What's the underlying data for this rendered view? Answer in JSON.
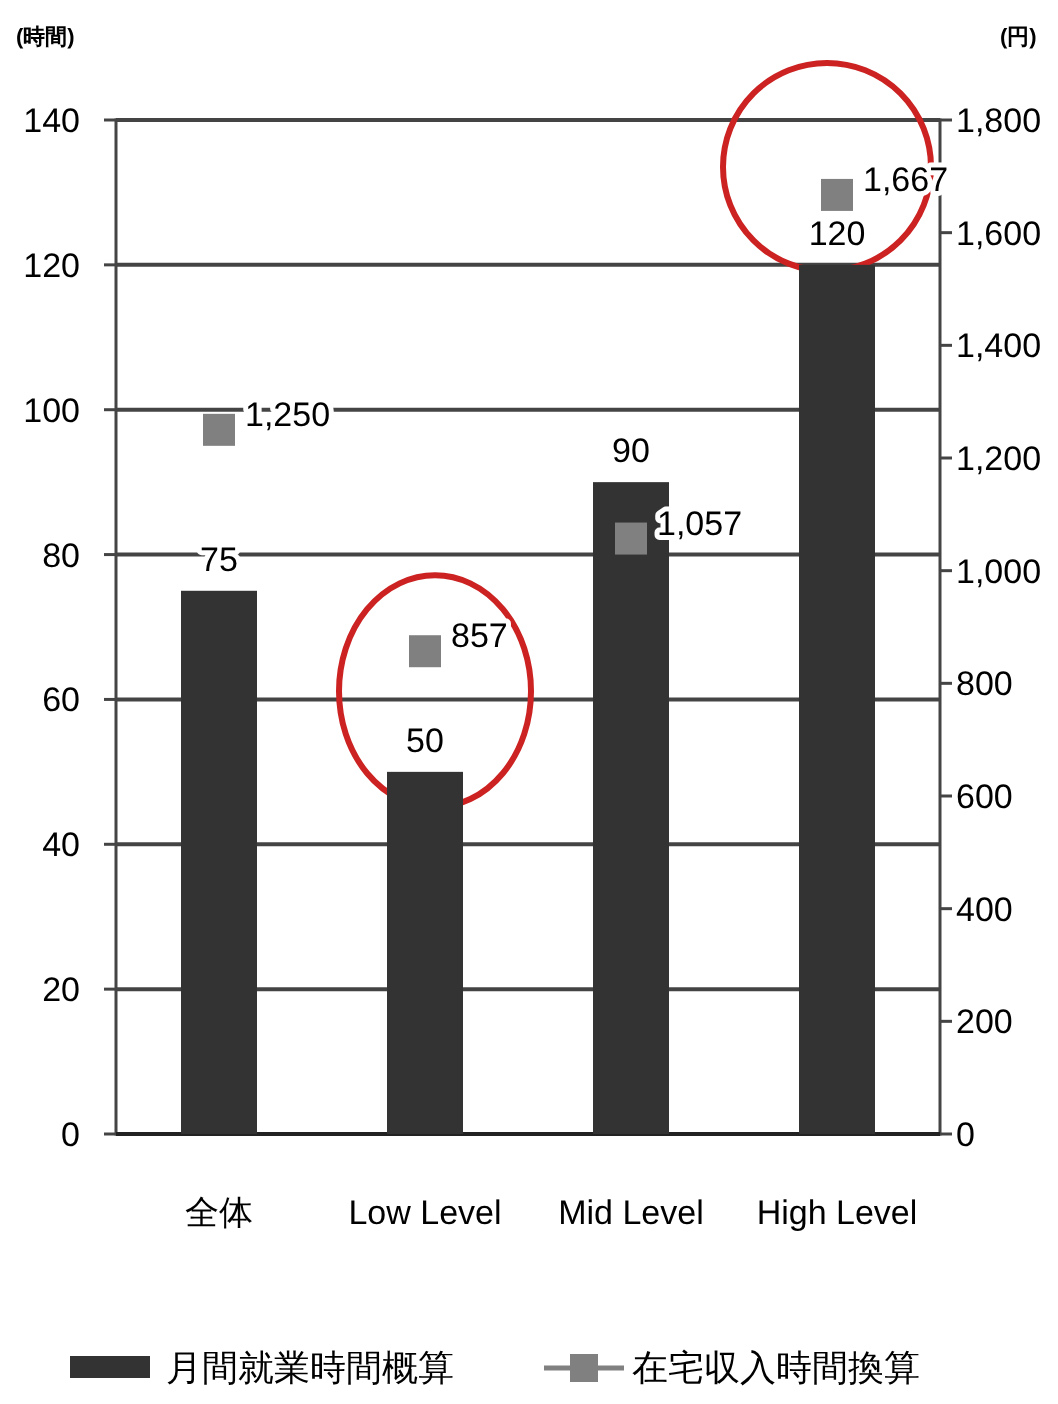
{
  "chart_data": {
    "type": "bar",
    "ylabel": "(時間)",
    "y2label": "(円)",
    "categories": [
      "全体",
      "Low Level",
      "Mid Level",
      "High Level"
    ],
    "series": [
      {
        "name": "月間就業時間概算",
        "color": "#333333",
        "values": [
          75,
          50,
          90,
          120
        ]
      },
      {
        "name": "在宅収入時間換算",
        "type": "scatter",
        "axis": "y2",
        "marker": "square",
        "color": "#808080",
        "values": [
          1250,
          857,
          1057,
          1667
        ],
        "value_labels": [
          "1,250",
          "857",
          "1,057",
          "1,667"
        ]
      }
    ],
    "data_labels": true,
    "ylim": [
      0,
      140
    ],
    "yticks": [
      0,
      20,
      40,
      60,
      80,
      100,
      120,
      140
    ],
    "y2lim": [
      0,
      1800
    ],
    "y2ticks": [
      {
        "value": 0,
        "label": "0"
      },
      {
        "value": 200,
        "label": "200"
      },
      {
        "value": 400,
        "label": "400"
      },
      {
        "value": 600,
        "label": "600"
      },
      {
        "value": 800,
        "label": "800"
      },
      {
        "value": 1000,
        "label": "1,000"
      },
      {
        "value": 1200,
        "label": "1,200"
      },
      {
        "value": 1400,
        "label": "1,400"
      },
      {
        "value": 1600,
        "label": "1,600"
      },
      {
        "value": 1800,
        "label": "1,800"
      }
    ],
    "grid": "y",
    "legend": "bottom"
  }
}
